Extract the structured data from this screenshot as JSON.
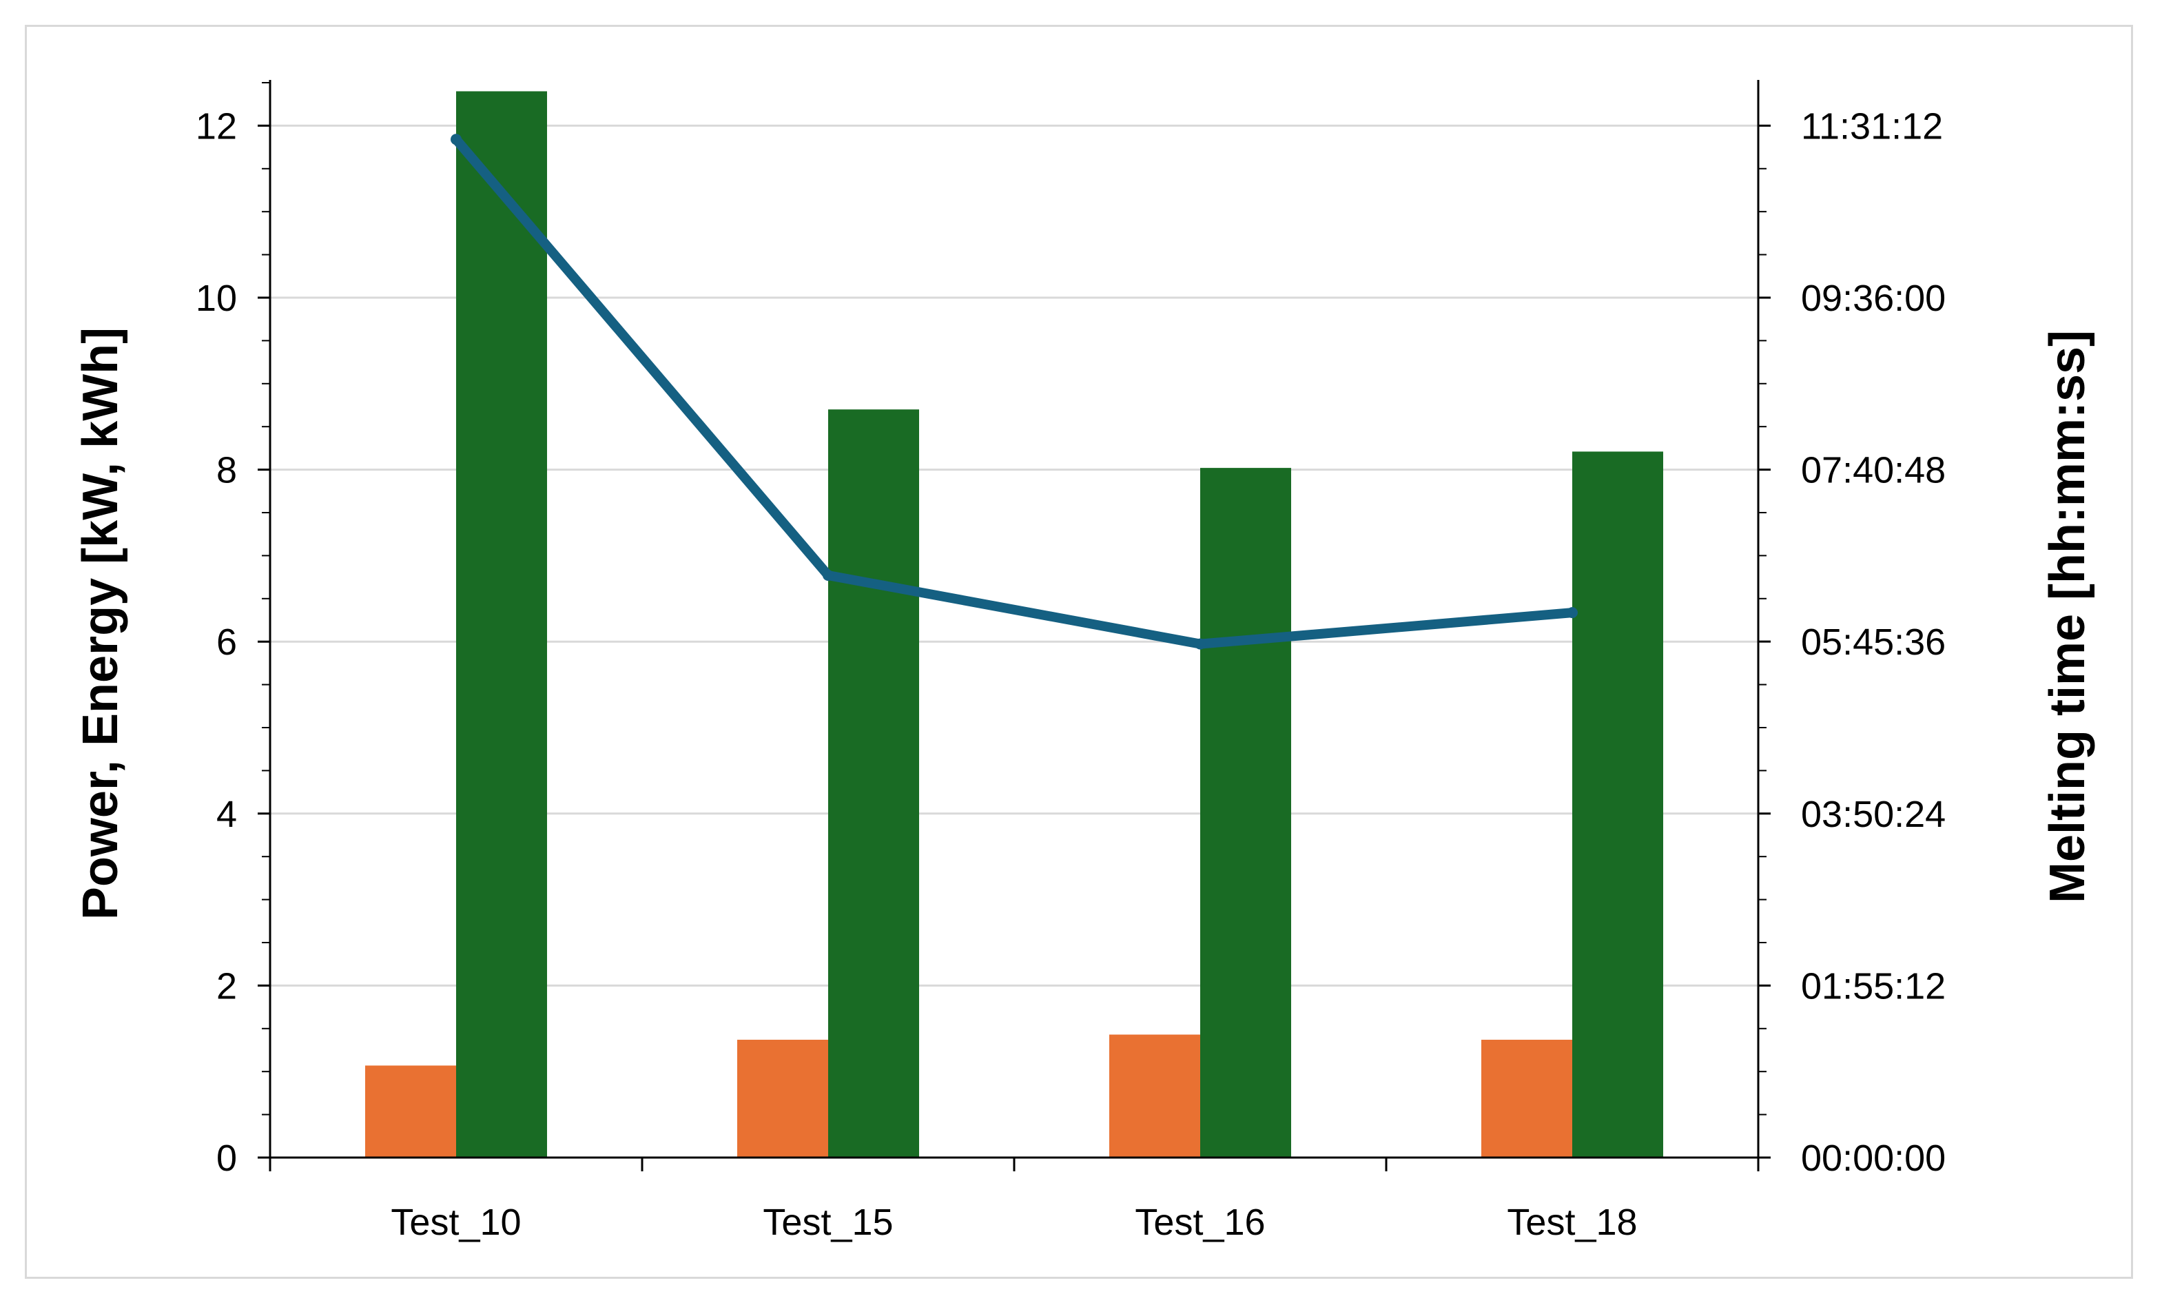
{
  "chart_data": {
    "type": "bar",
    "categories": [
      "Test_10",
      "Test_15",
      "Test_16",
      "Test_18"
    ],
    "series": [
      {
        "type": "bar",
        "axis": "left",
        "color": "#e97132",
        "values": [
          1.07,
          1.37,
          1.43,
          1.37
        ]
      },
      {
        "type": "bar",
        "axis": "left",
        "color": "#196b24",
        "values": [
          12.4,
          8.7,
          8.02,
          8.21
        ]
      },
      {
        "type": "line",
        "axis": "right",
        "color": "#156082",
        "values": [
          "11:22:00",
          "06:30:00",
          "05:44:00",
          "06:05:00"
        ]
      }
    ],
    "ylabel": "Power, Energy [kW, kWh]",
    "y2label": "Melting time [hh:mm:ss]",
    "ylim": [
      0,
      12.5
    ],
    "yticks": [
      "0",
      "2",
      "4",
      "6",
      "8",
      "10",
      "12"
    ],
    "y2lim": [
      "00:00:00",
      "11:59:59"
    ],
    "y2ticks": [
      "00:00:00",
      "01:55:12",
      "03:50:24",
      "05:45:36",
      "07:40:48",
      "09:36:00",
      "11:31:12"
    ],
    "grid": true,
    "legend": "none"
  }
}
